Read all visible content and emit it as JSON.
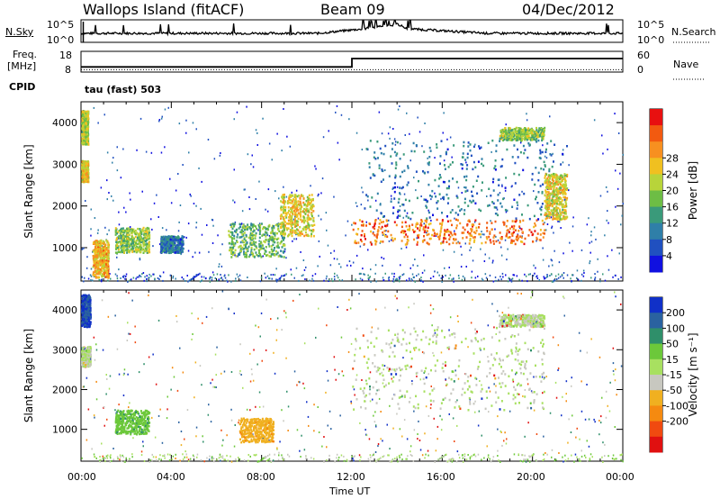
{
  "header": {
    "station": "Wallops Island (fitACF)",
    "beam": "Beam 09",
    "date": "04/Dec/2012"
  },
  "top_panel": {
    "left_label": "N.Sky",
    "left_ticks": [
      "10^5",
      "10^0"
    ],
    "right_ticks": [
      "10^5",
      "10^0"
    ],
    "right_label": "N.Search"
  },
  "freq_panel": {
    "left_label_line1": "Freq.",
    "left_label_line2": "[MHz]",
    "left_ticks": [
      "18",
      "8"
    ],
    "right_ticks": [
      "60",
      "0"
    ],
    "right_label": "Nave",
    "cpid_label": "CPID",
    "mode_label": "tau (fast) 503"
  },
  "x_ticks": [
    "00:00",
    "04:00",
    "08:00",
    "12:00",
    "16:00",
    "20:00",
    "00:00"
  ],
  "x_label": "Time UT",
  "chart_data": [
    {
      "type": "line",
      "panel": "noise",
      "x_range_hours": [
        0,
        24
      ],
      "series": [
        {
          "name": "N.Sky",
          "style": "solid",
          "x": [
            0,
            10.5,
            12.5,
            14,
            14.5,
            18,
            20,
            24
          ],
          "y": [
            2,
            2,
            3,
            4,
            3,
            2,
            2,
            2
          ]
        },
        {
          "name": "N.Search",
          "style": "dotted",
          "x": [
            0,
            24
          ],
          "y": [
            0,
            0
          ]
        }
      ]
    },
    {
      "type": "line",
      "panel": "frequency",
      "y_range_mhz": [
        8,
        18
      ],
      "y_range_nave": [
        0,
        60
      ],
      "series": [
        {
          "name": "Freq.",
          "style": "solid",
          "x": [
            0,
            12,
            12,
            24
          ],
          "y": [
            10.5,
            10.5,
            14.5,
            14.5
          ]
        },
        {
          "name": "Nave",
          "style": "dotted",
          "x": [
            0,
            24
          ],
          "y": [
            7,
            7
          ]
        }
      ]
    },
    {
      "type": "heatmap",
      "panel": "power",
      "ylabel": "Slant Range [km]",
      "yticks": [
        "1000",
        "2000",
        "3000",
        "4000"
      ],
      "ylim": [
        200,
        4500
      ],
      "xlim_hours": [
        0,
        24
      ],
      "colorbar": {
        "label": "Power [dB]",
        "ticks": [
          "4",
          "8",
          "12",
          "16",
          "20",
          "24",
          "28"
        ],
        "colors": [
          "#1010e0",
          "#2050c0",
          "#2f7fa8",
          "#3a9a7a",
          "#6dbd45",
          "#b8d43a",
          "#f0c020",
          "#f79020",
          "#f25a10",
          "#e81010"
        ]
      },
      "regions": [
        {
          "t": [
            0.0,
            0.3
          ],
          "r": [
            3500,
            4300
          ],
          "level": 16
        },
        {
          "t": [
            0.0,
            0.3
          ],
          "r": [
            2600,
            3100
          ],
          "level": 18
        },
        {
          "t": [
            0.5,
            1.2
          ],
          "r": [
            300,
            1200
          ],
          "level": 20
        },
        {
          "t": [
            1.5,
            3.0
          ],
          "r": [
            900,
            1500
          ],
          "level": 14
        },
        {
          "t": [
            3.5,
            4.5
          ],
          "r": [
            900,
            1300
          ],
          "level": 6
        },
        {
          "t": [
            6.5,
            9.0
          ],
          "r": [
            800,
            1600
          ],
          "level": 12
        },
        {
          "t": [
            8.8,
            10.3
          ],
          "r": [
            1300,
            2300
          ],
          "level": 18
        },
        {
          "t": [
            12.0,
            20.5
          ],
          "r": [
            1100,
            1700
          ],
          "level": 24
        },
        {
          "t": [
            12.5,
            21.5
          ],
          "r": [
            1700,
            3600
          ],
          "level": 6
        },
        {
          "t": [
            20.5,
            21.5
          ],
          "r": [
            1700,
            2800
          ],
          "level": 18
        },
        {
          "t": [
            18.5,
            20.5
          ],
          "r": [
            3600,
            3900
          ],
          "level": 14
        }
      ]
    },
    {
      "type": "heatmap",
      "panel": "velocity",
      "ylabel": "Slant Range [km]",
      "yticks": [
        "1000",
        "2000",
        "3000",
        "4000"
      ],
      "ylim": [
        200,
        4500
      ],
      "xlim_hours": [
        0,
        24
      ],
      "colorbar": {
        "label": "Velocity [m s⁻¹]",
        "ticks": [
          "200",
          "100",
          "50",
          "15",
          "-15",
          "-50",
          "-100",
          "-200"
        ],
        "colors": [
          "#1030c8",
          "#2a62a0",
          "#2f8f6a",
          "#6cc83a",
          "#a8e060",
          "#c8c8c0",
          "#f0b020",
          "#f58a10",
          "#f04a10",
          "#e01010"
        ]
      },
      "regions": [
        {
          "t": [
            0.0,
            0.4
          ],
          "r": [
            3600,
            4400
          ],
          "v": 200
        },
        {
          "t": [
            0.0,
            0.4
          ],
          "r": [
            2600,
            3100
          ],
          "v": 0
        },
        {
          "t": [
            1.5,
            3.0
          ],
          "r": [
            900,
            1500
          ],
          "v": 60
        },
        {
          "t": [
            7.0,
            8.5
          ],
          "r": [
            700,
            1300
          ],
          "v": -60
        },
        {
          "t": [
            12.0,
            20.5
          ],
          "r": [
            1500,
            3600
          ],
          "v": 0
        },
        {
          "t": [
            18.5,
            20.5
          ],
          "r": [
            3600,
            3900
          ],
          "v": 0
        }
      ]
    }
  ]
}
